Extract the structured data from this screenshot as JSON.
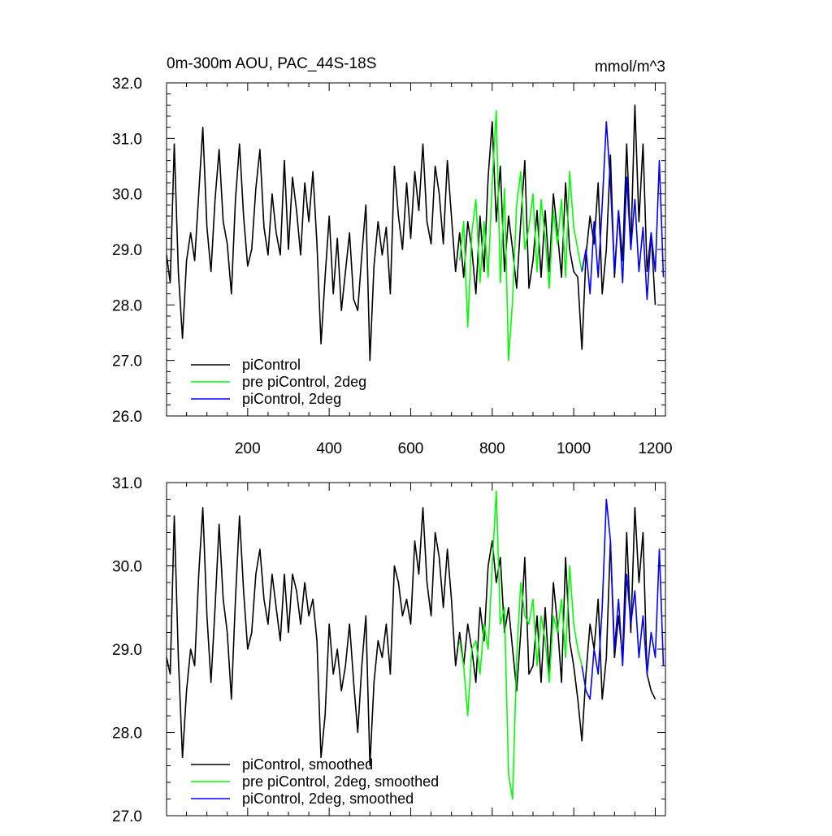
{
  "chart_data": [
    {
      "type": "line",
      "title": "0m-300m AOU, PAC_44S-18S",
      "units": "mmol/m^3",
      "xlabel": "",
      "ylabel": "",
      "xlim": [
        1,
        1225
      ],
      "ylim": [
        26.0,
        32.0
      ],
      "xticks": [
        200,
        400,
        600,
        800,
        1000,
        1200
      ],
      "xtick_labels": [
        "200",
        "400",
        "600",
        "800",
        "1000",
        "1200"
      ],
      "yticks": [
        26.0,
        27.0,
        28.0,
        29.0,
        30.0,
        31.0,
        32.0
      ],
      "ytick_labels": [
        "26.0",
        "27.0",
        "28.0",
        "29.0",
        "30.0",
        "31.0",
        "32.0"
      ],
      "grid": false,
      "legend_position": "bottom-left",
      "series": [
        {
          "name": "piControl",
          "color": "#000000",
          "x": [
            1,
            10,
            20,
            30,
            40,
            50,
            60,
            70,
            80,
            90,
            100,
            110,
            120,
            130,
            140,
            150,
            160,
            170,
            180,
            190,
            200,
            210,
            220,
            230,
            240,
            250,
            260,
            270,
            280,
            290,
            300,
            310,
            320,
            330,
            340,
            350,
            360,
            370,
            380,
            390,
            400,
            410,
            420,
            430,
            440,
            450,
            460,
            470,
            480,
            490,
            500,
            510,
            520,
            530,
            540,
            550,
            560,
            570,
            580,
            590,
            600,
            610,
            620,
            630,
            640,
            650,
            660,
            670,
            680,
            690,
            700,
            710,
            720,
            730,
            740,
            750,
            760,
            770,
            780,
            790,
            800,
            810,
            820,
            830,
            840,
            850,
            860,
            870,
            880,
            890,
            900,
            910,
            920,
            930,
            940,
            950,
            960,
            970,
            980,
            990,
            1000,
            1010,
            1020,
            1030,
            1040,
            1050,
            1060,
            1070,
            1080,
            1090,
            1100,
            1110,
            1120,
            1130,
            1140,
            1150,
            1160,
            1170,
            1180,
            1190,
            1200
          ],
          "values": [
            28.9,
            28.4,
            30.9,
            28.6,
            27.4,
            28.8,
            29.3,
            28.8,
            30.0,
            31.2,
            29.4,
            28.6,
            29.9,
            30.8,
            29.5,
            29.1,
            28.2,
            29.9,
            30.9,
            29.6,
            28.7,
            29.0,
            30.1,
            30.8,
            29.4,
            28.9,
            30.0,
            29.3,
            28.9,
            30.6,
            29.0,
            30.3,
            29.7,
            28.9,
            30.2,
            29.5,
            30.4,
            29.1,
            27.3,
            28.5,
            29.6,
            28.2,
            29.2,
            27.9,
            28.6,
            29.3,
            28.1,
            27.9,
            28.9,
            29.8,
            27.0,
            28.7,
            29.5,
            28.9,
            29.4,
            28.2,
            30.5,
            29.6,
            29.0,
            30.2,
            29.2,
            30.4,
            29.7,
            30.9,
            29.5,
            29.1,
            30.5,
            30.0,
            29.1,
            30.6,
            29.6,
            28.6,
            29.3,
            28.5,
            29.5,
            29.0,
            28.2,
            29.6,
            28.6,
            30.3,
            31.3,
            29.5,
            30.5,
            28.6,
            29.6,
            29.0,
            28.3,
            29.5,
            30.6,
            28.3,
            28.8,
            29.7,
            28.5,
            29.7,
            28.6,
            30.0,
            29.3,
            28.5,
            30.2,
            29.0,
            28.6,
            28.5,
            27.2,
            28.9,
            29.6,
            29.1,
            30.2,
            28.2,
            29.0,
            30.7,
            28.5,
            29.7,
            28.8,
            30.9,
            29.0,
            31.6,
            29.5,
            30.9,
            28.6,
            29.3,
            28.0
          ]
        },
        {
          "name": "pre piControl, 2deg",
          "color": "#00ff00",
          "x": [
            720,
            730,
            740,
            750,
            760,
            770,
            780,
            790,
            800,
            810,
            820,
            830,
            840,
            850,
            860,
            870,
            880,
            890,
            900,
            910,
            920,
            930,
            940,
            950,
            960,
            970,
            980,
            990,
            1000,
            1010,
            1020
          ],
          "values": [
            28.8,
            29.5,
            27.6,
            29.3,
            29.9,
            28.4,
            29.5,
            28.5,
            30.2,
            31.5,
            28.4,
            30.1,
            27.0,
            28.1,
            29.8,
            30.4,
            29.0,
            29.4,
            30.0,
            28.6,
            29.9,
            29.2,
            28.3,
            29.7,
            29.1,
            29.9,
            28.5,
            30.4,
            29.4,
            29.0,
            28.6
          ]
        },
        {
          "name": "piControl, 2deg",
          "color": "#0000ff",
          "x": [
            1020,
            1030,
            1040,
            1050,
            1060,
            1070,
            1080,
            1090,
            1100,
            1110,
            1120,
            1130,
            1140,
            1150,
            1160,
            1170,
            1180,
            1190,
            1200,
            1210,
            1220
          ],
          "values": [
            28.6,
            29.0,
            28.2,
            29.5,
            28.5,
            29.8,
            31.3,
            30.2,
            28.6,
            29.7,
            28.4,
            30.3,
            29.0,
            29.9,
            28.6,
            29.4,
            28.1,
            29.3,
            28.6,
            30.6,
            28.5
          ]
        }
      ]
    },
    {
      "type": "line",
      "title": "",
      "xlabel": "",
      "ylabel": "",
      "xlim": [
        1,
        1225
      ],
      "ylim": [
        27.0,
        31.0
      ],
      "xticks": [
        200,
        400,
        600,
        800,
        1000,
        1200
      ],
      "xtick_labels": [],
      "yticks": [
        27.0,
        28.0,
        29.0,
        30.0,
        31.0
      ],
      "ytick_labels": [
        "27.0",
        "28.0",
        "29.0",
        "30.0",
        "31.0"
      ],
      "grid": false,
      "legend_position": "bottom-left",
      "series": [
        {
          "name": "piControl, smoothed",
          "color": "#000000",
          "x": [
            1,
            10,
            20,
            30,
            40,
            50,
            60,
            70,
            80,
            90,
            100,
            110,
            120,
            130,
            140,
            150,
            160,
            170,
            180,
            190,
            200,
            210,
            220,
            230,
            240,
            250,
            260,
            270,
            280,
            290,
            300,
            310,
            320,
            330,
            340,
            350,
            360,
            370,
            380,
            390,
            400,
            410,
            420,
            430,
            440,
            450,
            460,
            470,
            480,
            490,
            500,
            510,
            520,
            530,
            540,
            550,
            560,
            570,
            580,
            590,
            600,
            610,
            620,
            630,
            640,
            650,
            660,
            670,
            680,
            690,
            700,
            710,
            720,
            730,
            740,
            750,
            760,
            770,
            780,
            790,
            800,
            810,
            820,
            830,
            840,
            850,
            860,
            870,
            880,
            890,
            900,
            910,
            920,
            930,
            940,
            950,
            960,
            970,
            980,
            990,
            1000,
            1010,
            1020,
            1030,
            1040,
            1050,
            1060,
            1070,
            1080,
            1090,
            1100,
            1110,
            1120,
            1130,
            1140,
            1150,
            1160,
            1170,
            1180,
            1190,
            1200
          ],
          "values": [
            28.9,
            28.7,
            30.6,
            28.9,
            27.7,
            28.5,
            29.0,
            28.8,
            29.9,
            30.7,
            29.4,
            28.6,
            29.5,
            30.5,
            29.6,
            29.2,
            28.4,
            29.6,
            30.6,
            29.7,
            29.0,
            29.2,
            29.9,
            30.2,
            29.6,
            29.3,
            29.9,
            29.5,
            29.1,
            29.9,
            29.2,
            29.9,
            29.7,
            29.3,
            29.8,
            29.4,
            29.6,
            29.1,
            27.7,
            28.2,
            29.3,
            28.7,
            29.0,
            28.5,
            28.8,
            29.3,
            28.6,
            28.0,
            28.8,
            29.4,
            27.6,
            28.6,
            29.1,
            28.9,
            29.3,
            28.7,
            30.0,
            29.8,
            29.4,
            29.6,
            29.3,
            30.3,
            29.9,
            30.7,
            29.8,
            29.4,
            30.4,
            30.1,
            29.5,
            30.2,
            29.6,
            28.8,
            29.2,
            28.8,
            29.3,
            29.0,
            28.6,
            29.5,
            29.1,
            30.0,
            30.3,
            29.8,
            30.1,
            29.2,
            29.5,
            29.0,
            28.5,
            29.2,
            30.1,
            28.7,
            28.8,
            29.4,
            28.6,
            29.5,
            28.7,
            29.8,
            29.3,
            28.6,
            30.1,
            29.1,
            28.8,
            28.4,
            27.9,
            28.7,
            29.3,
            29.0,
            29.6,
            28.4,
            28.9,
            30.3,
            28.9,
            29.4,
            28.9,
            30.4,
            29.2,
            30.7,
            29.8,
            30.4,
            28.7,
            28.5,
            28.4
          ]
        },
        {
          "name": "pre piControl, 2deg, smoothed",
          "color": "#00ff00",
          "x": [
            720,
            730,
            740,
            750,
            760,
            770,
            780,
            790,
            800,
            810,
            820,
            830,
            840,
            850,
            860,
            870,
            880,
            890,
            900,
            910,
            920,
            930,
            940,
            950,
            960,
            970,
            980,
            990,
            1000,
            1010,
            1020
          ],
          "values": [
            29.1,
            28.8,
            28.2,
            29.0,
            29.1,
            28.7,
            29.3,
            29.0,
            30.0,
            30.9,
            29.3,
            29.5,
            27.5,
            27.2,
            28.9,
            29.8,
            29.4,
            29.3,
            29.6,
            28.8,
            29.4,
            29.1,
            28.6,
            29.4,
            29.2,
            29.6,
            28.9,
            30.0,
            29.3,
            29.0,
            28.8
          ]
        },
        {
          "name": "piControl, 2deg, smoothed",
          "color": "#0000ff",
          "x": [
            1020,
            1030,
            1040,
            1050,
            1060,
            1070,
            1080,
            1090,
            1100,
            1110,
            1120,
            1130,
            1140,
            1150,
            1160,
            1170,
            1180,
            1190,
            1200,
            1210,
            1220
          ],
          "values": [
            28.8,
            28.5,
            28.4,
            29.0,
            28.7,
            29.5,
            30.8,
            30.3,
            29.0,
            29.6,
            28.8,
            29.9,
            29.3,
            29.7,
            28.9,
            29.4,
            28.7,
            29.2,
            28.9,
            30.2,
            28.8
          ]
        }
      ]
    }
  ]
}
